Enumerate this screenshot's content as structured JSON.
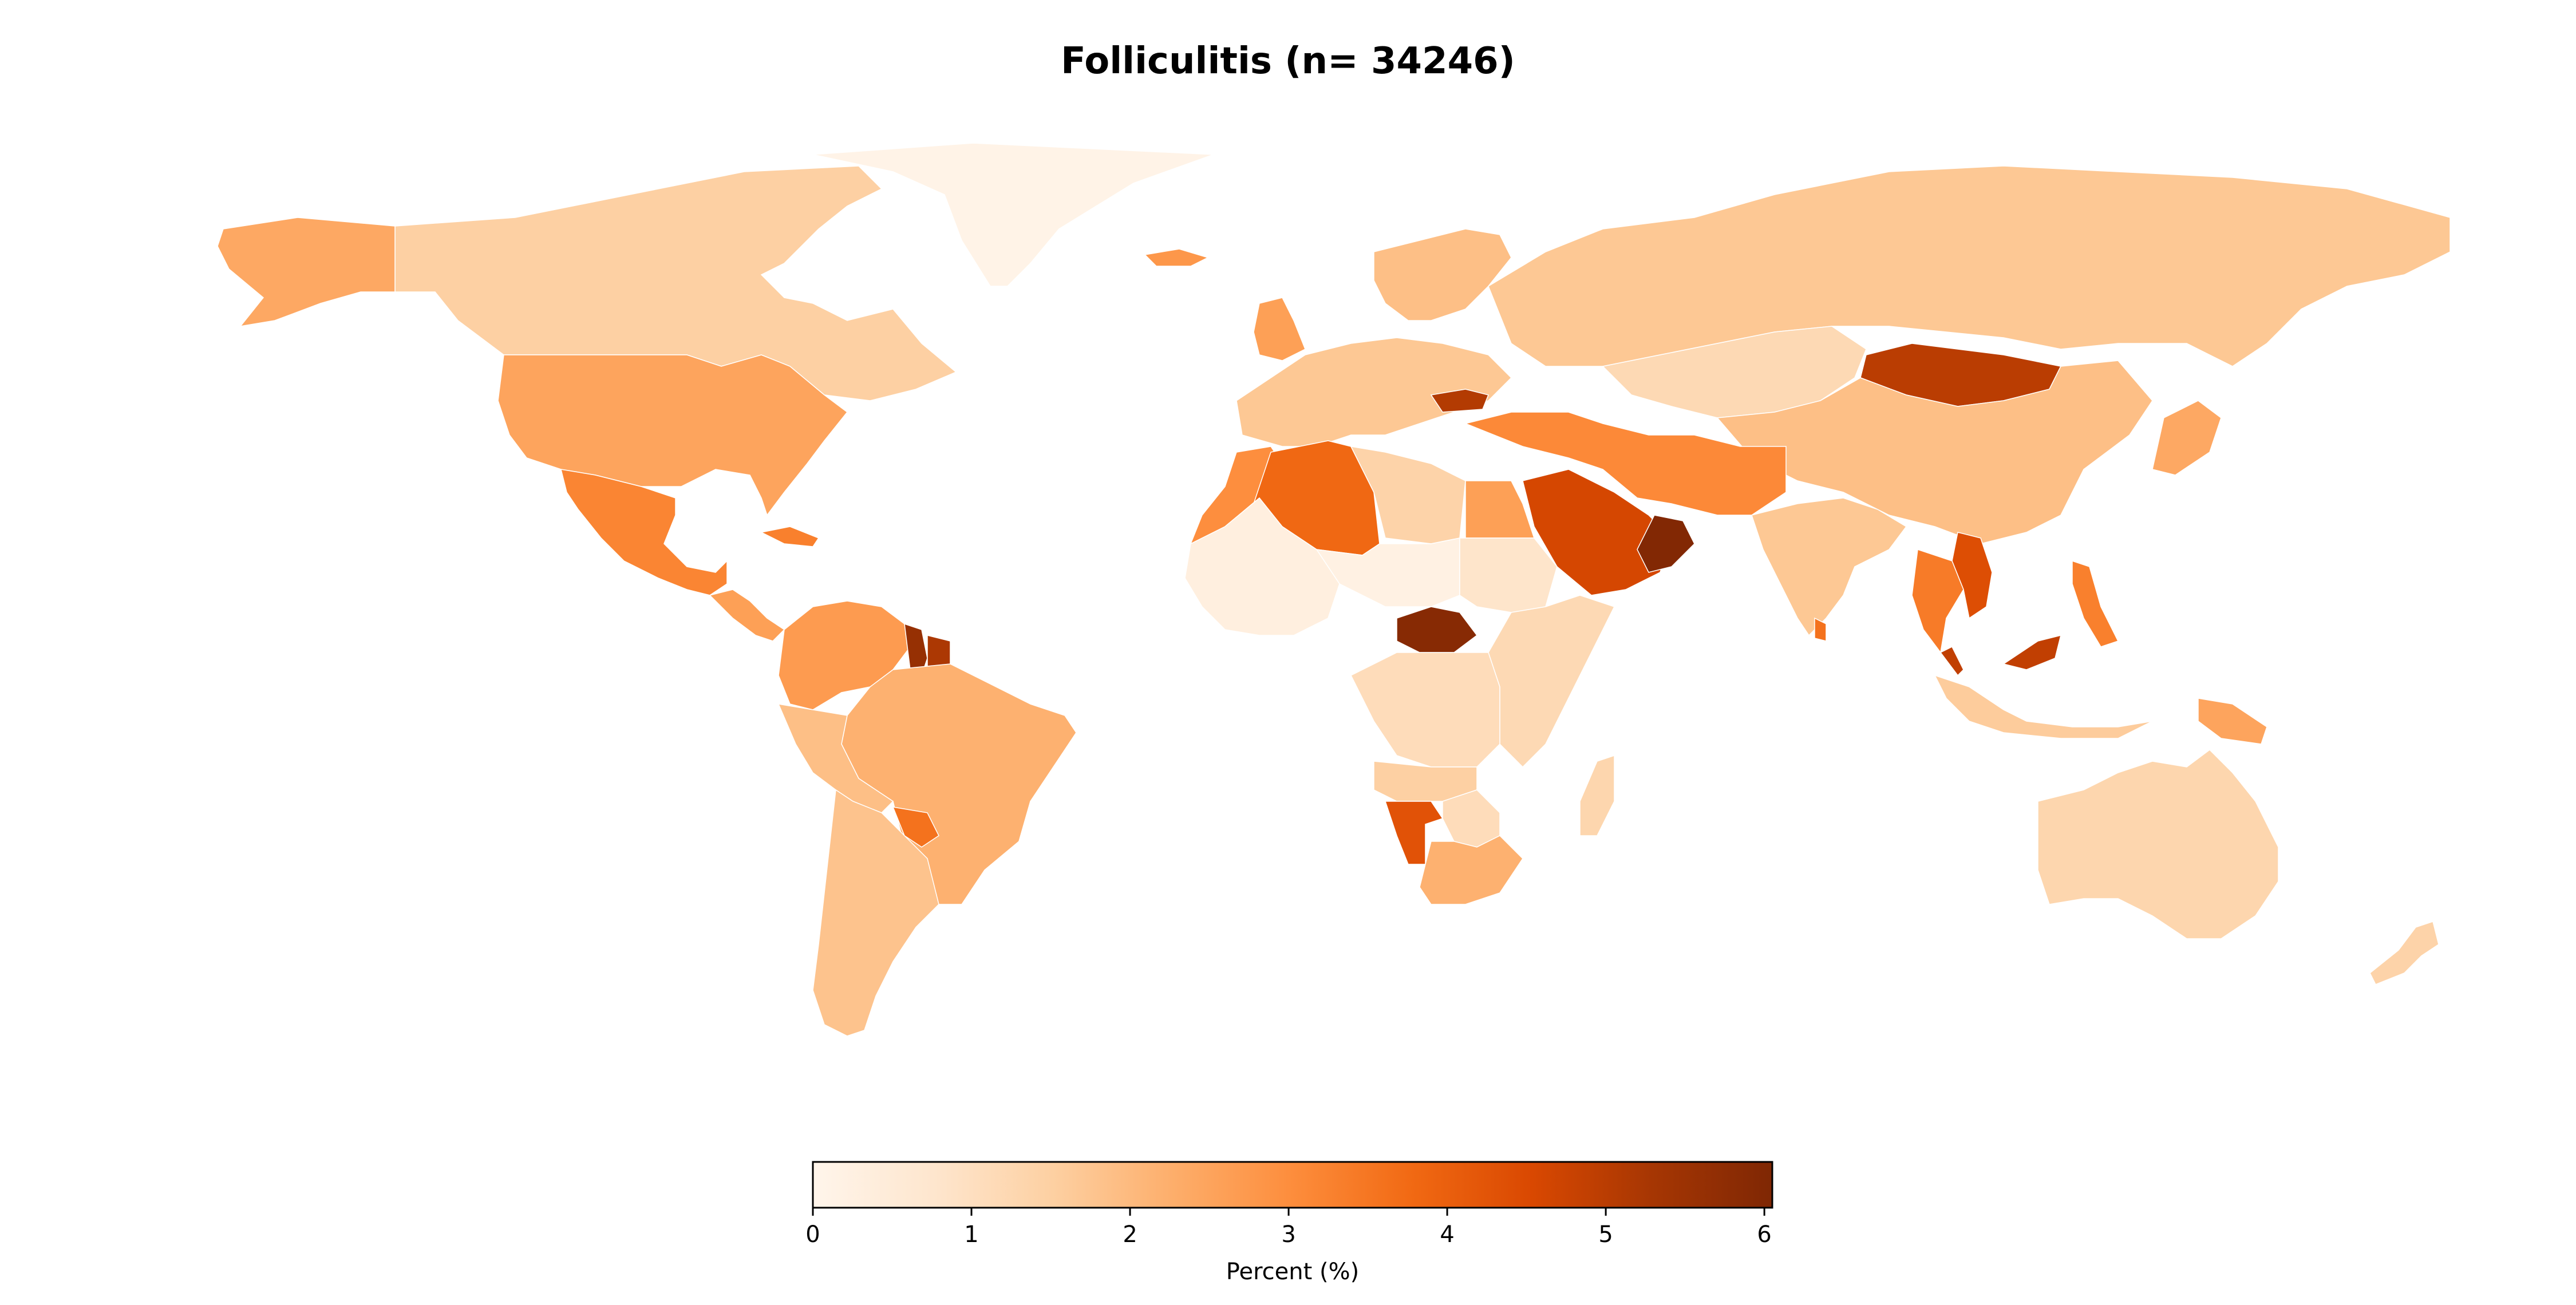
{
  "title": "Folliculitis (n= 34246)",
  "colorbar": {
    "label": "Percent (%)",
    "min": 0,
    "max": 6.05,
    "ticks": [
      "0",
      "1",
      "2",
      "3",
      "4",
      "5",
      "6"
    ],
    "tick_values": [
      0,
      1,
      2,
      3,
      4,
      5,
      6
    ],
    "colormap": [
      "#fff5eb",
      "#fee6ce",
      "#fdd0a2",
      "#fdae6b",
      "#fd8d3c",
      "#f16913",
      "#d94801",
      "#a63603",
      "#7f2704"
    ]
  },
  "regions": [
    {
      "name": "greenland",
      "value": 0.1
    },
    {
      "name": "canada",
      "value": 1.5
    },
    {
      "name": "alaska",
      "value": 2.4
    },
    {
      "name": "united-states",
      "value": 2.5
    },
    {
      "name": "mexico",
      "value": 3.2
    },
    {
      "name": "central-america",
      "value": 2.6
    },
    {
      "name": "cuba",
      "value": 3.3
    },
    {
      "name": "venezuela-colombia",
      "value": 2.7
    },
    {
      "name": "guyana",
      "value": 5.6
    },
    {
      "name": "suriname",
      "value": 5.2
    },
    {
      "name": "brazil",
      "value": 2.2
    },
    {
      "name": "peru-bolivia",
      "value": 1.9
    },
    {
      "name": "paraguay",
      "value": 3.6
    },
    {
      "name": "argentina-chile",
      "value": 1.8
    },
    {
      "name": "iceland",
      "value": 2.8
    },
    {
      "name": "scandinavia",
      "value": 1.9
    },
    {
      "name": "western-europe",
      "value": 1.7
    },
    {
      "name": "uk-ireland",
      "value": 2.6
    },
    {
      "name": "bulgaria",
      "value": 5.1
    },
    {
      "name": "russia",
      "value": 1.7
    },
    {
      "name": "kazakhstan",
      "value": 1.2
    },
    {
      "name": "mongolia",
      "value": 5.0
    },
    {
      "name": "china",
      "value": 1.9
    },
    {
      "name": "japan",
      "value": 2.4
    },
    {
      "name": "iran-turkey",
      "value": 3.1
    },
    {
      "name": "saudi-arabia",
      "value": 4.6
    },
    {
      "name": "oman",
      "value": 6.0
    },
    {
      "name": "india",
      "value": 1.7
    },
    {
      "name": "vietnam",
      "value": 4.4
    },
    {
      "name": "thailand",
      "value": 3.4
    },
    {
      "name": "malaysia",
      "value": 4.9
    },
    {
      "name": "indonesia",
      "value": 1.6
    },
    {
      "name": "philippines",
      "value": 3.3
    },
    {
      "name": "papua-new-guinea",
      "value": 2.5
    },
    {
      "name": "australia",
      "value": 1.3
    },
    {
      "name": "new-zealand",
      "value": 1.4
    },
    {
      "name": "morocco",
      "value": 3.0
    },
    {
      "name": "algeria",
      "value": 3.8
    },
    {
      "name": "libya",
      "value": 1.4
    },
    {
      "name": "egypt",
      "value": 2.6
    },
    {
      "name": "west-africa",
      "value": 0.3
    },
    {
      "name": "niger-chad",
      "value": 0.2
    },
    {
      "name": "sudan",
      "value": 0.8
    },
    {
      "name": "central-african-republic",
      "value": 5.9
    },
    {
      "name": "congo",
      "value": 1.1
    },
    {
      "name": "east-africa",
      "value": 1.2
    },
    {
      "name": "angola",
      "value": 1.5
    },
    {
      "name": "namibia",
      "value": 4.3
    },
    {
      "name": "botswana",
      "value": 1.1
    },
    {
      "name": "south-africa",
      "value": 2.2
    },
    {
      "name": "madagascar",
      "value": 1.3
    },
    {
      "name": "sri-lanka",
      "value": 3.6
    }
  ]
}
